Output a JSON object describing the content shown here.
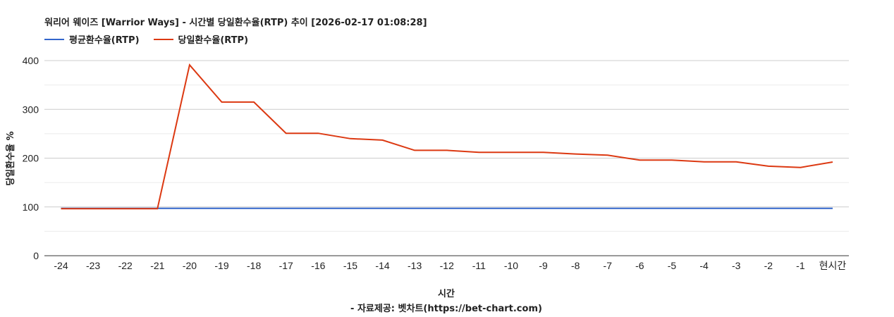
{
  "header": {
    "title": "워리어 웨이즈 [Warrior Ways] - 시간별 당일환수율(RTP) 추이 [2026-02-17 01:08:28]"
  },
  "legend": [
    {
      "label": "평균환수율(RTP)",
      "color": "#3366cc"
    },
    {
      "label": "당일환수율(RTP)",
      "color": "#dc3912"
    }
  ],
  "axes": {
    "y_title": "당일환수율 %",
    "x_title": "시간",
    "credit": "- 자료제공: 벳차트(https://bet-chart.com)"
  },
  "chart_data": {
    "type": "line",
    "title": "워리어 웨이즈 [Warrior Ways] - 시간별 당일환수율(RTP) 추이 [2026-02-17 01:08:28]",
    "xlabel": "시간",
    "ylabel": "당일환수율 %",
    "ylim": [
      0,
      400
    ],
    "yticks": [
      0,
      100,
      200,
      300,
      400
    ],
    "grid": true,
    "legend_position": "top-left",
    "categories": [
      "-24",
      "-23",
      "-22",
      "-21",
      "-20",
      "-19",
      "-18",
      "-17",
      "-16",
      "-15",
      "-14",
      "-13",
      "-12",
      "-11",
      "-10",
      "-9",
      "-8",
      "-7",
      "-6",
      "-5",
      "-4",
      "-3",
      "-2",
      "-1",
      "현시간"
    ],
    "series": [
      {
        "name": "평균환수율(RTP)",
        "color": "#3366cc",
        "values": [
          97,
          97,
          97,
          97,
          97,
          97,
          97,
          97,
          97,
          97,
          97,
          97,
          97,
          97,
          97,
          97,
          97,
          97,
          97,
          97,
          97,
          97,
          97,
          97,
          97
        ]
      },
      {
        "name": "당일환수율(RTP)",
        "color": "#dc3912",
        "values": [
          96.5,
          96.5,
          96.5,
          96.5,
          391,
          315,
          315,
          251,
          251,
          240,
          237,
          216,
          216,
          212,
          212,
          212,
          208.5,
          206,
          196,
          196,
          192.5,
          192.5,
          183.5,
          181,
          192
        ]
      }
    ]
  }
}
